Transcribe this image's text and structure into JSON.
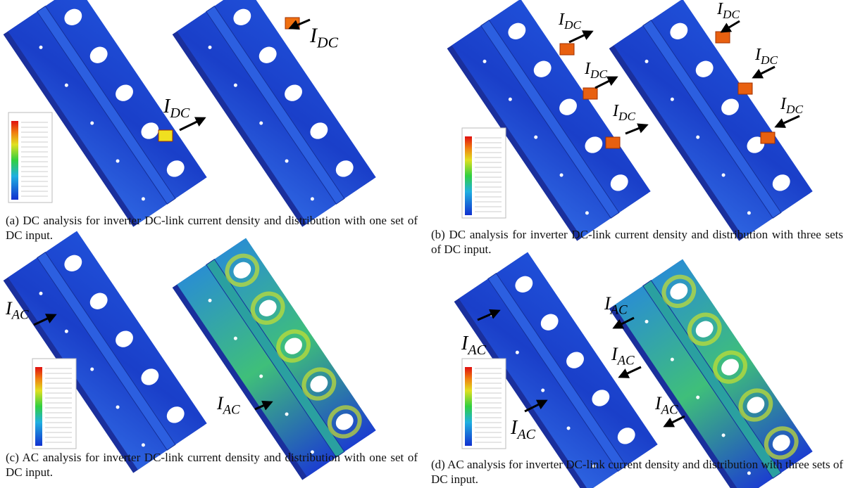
{
  "panels": [
    {
      "caption": "(a) DC analysis for inverter DC-link current density and distribution with one set of DC input.",
      "labels": [
        {
          "main": "I",
          "sub": "DC"
        },
        {
          "main": "I",
          "sub": "DC"
        }
      ]
    },
    {
      "caption": "(b) DC analysis for inverter DC-link current density and distribution with three sets of DC input.",
      "labels": [
        {
          "main": "I",
          "sub": "DC"
        },
        {
          "main": "I",
          "sub": "DC"
        },
        {
          "main": "I",
          "sub": "DC"
        },
        {
          "main": "I",
          "sub": "DC"
        },
        {
          "main": "I",
          "sub": "DC"
        },
        {
          "main": "I",
          "sub": "DC"
        }
      ]
    },
    {
      "caption": "(c) AC analysis for inverter DC-link current density and distribution with one set of DC input.",
      "labels": [
        {
          "main": "I",
          "sub": "AC"
        },
        {
          "main": "I",
          "sub": "AC"
        }
      ]
    },
    {
      "caption": "(d) AC analysis for inverter DC-link current density and distribution with three sets of DC input.",
      "labels": [
        {
          "main": "I",
          "sub": "AC"
        },
        {
          "main": "I",
          "sub": "AC"
        },
        {
          "main": "I",
          "sub": "AC"
        },
        {
          "main": "I",
          "sub": "AC"
        },
        {
          "main": "I",
          "sub": "AC"
        }
      ]
    }
  ]
}
